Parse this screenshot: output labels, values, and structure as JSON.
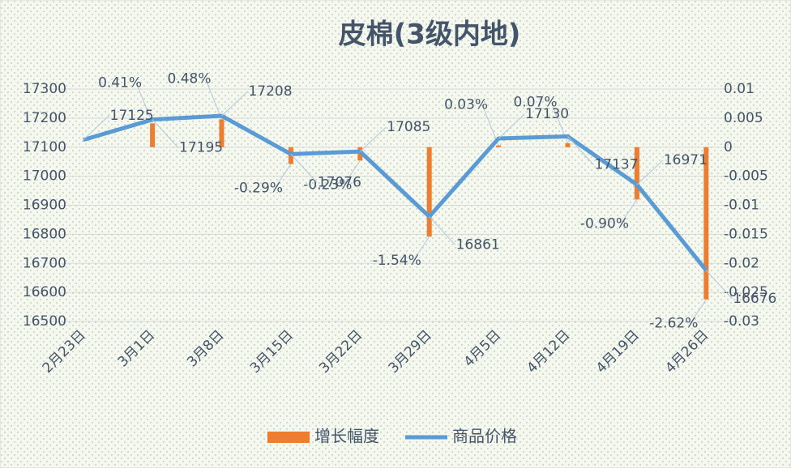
{
  "chart_data": {
    "type": "bar-line",
    "title": "皮棉(3级内地)",
    "categories": [
      "2月23日",
      "3月1日",
      "3月8日",
      "3月15日",
      "3月22日",
      "3月29日",
      "4月5日",
      "4月12日",
      "4月19日",
      "4月26日"
    ],
    "series": [
      {
        "name": "增长幅度",
        "type": "bar",
        "axis": "y2",
        "color": "#ed7d31",
        "values": [
          null,
          0.0041,
          0.0048,
          -0.0029,
          -0.0023,
          -0.0154,
          0.0003,
          0.0007,
          -0.009,
          -0.0262
        ],
        "value_labels": [
          null,
          "0.41%",
          "0.48%",
          "-0.29%",
          "-0.23%",
          "-1.54%",
          "0.03%",
          "0.07%",
          "-0.90%",
          "-2.62%"
        ]
      },
      {
        "name": "商品价格",
        "type": "line",
        "color": "#5b9bd5",
        "values": [
          17125,
          17195,
          17208,
          17076,
          17085,
          16861,
          17130,
          17137,
          16971,
          16676
        ]
      }
    ],
    "ylim": [
      16500,
      17300
    ],
    "yticks": [
      16500,
      16600,
      16700,
      16800,
      16900,
      17000,
      17100,
      17200,
      17300
    ],
    "y2lim": [
      -0.03,
      0.01
    ],
    "y2ticks": [
      -0.03,
      -0.025,
      -0.02,
      -0.015,
      -0.01,
      -0.005,
      0,
      0.005,
      0.01
    ],
    "grid": true,
    "legend": "bottom"
  }
}
